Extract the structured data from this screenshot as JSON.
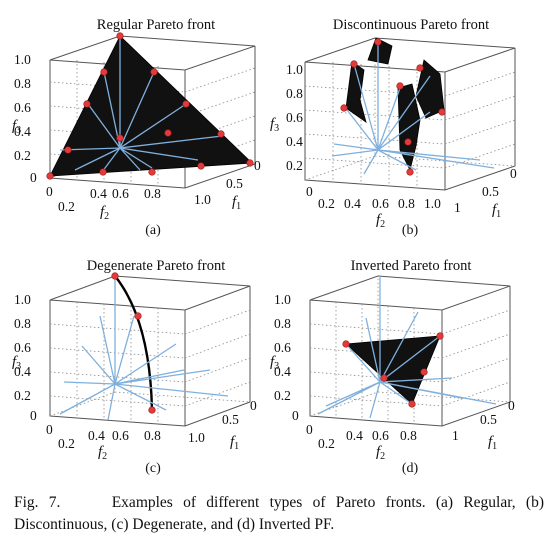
{
  "caption": {
    "label": "Fig. 7.",
    "text": "Examples of different types of Pareto fronts. (a) Regular, (b) Discontinuous, (c) Degenerate, and (d) Inverted PF."
  },
  "colors": {
    "vectors": "#7fb0dd",
    "front": "#111111",
    "points": "#e23b3b"
  },
  "panels": [
    {
      "id": "a",
      "title": "Regular Pareto front",
      "label": "(a)",
      "f3_ticks": [
        "1.0",
        "0.8",
        "0.6",
        "0.4",
        "0.2",
        "0"
      ],
      "f2_ticks": [
        "0",
        "0.2",
        "0.4",
        "0.6",
        "0.8"
      ],
      "f1_ticks": [
        "1.0",
        "0.5",
        "0"
      ],
      "axis_labels": {
        "f1": "f1",
        "f2": "f2",
        "f3": "f3"
      }
    },
    {
      "id": "b",
      "title": "Discontinuous Pareto front",
      "label": "(b)",
      "f3_ticks": [
        "1.0",
        "0.8",
        "0.6",
        "0.4",
        "0.2"
      ],
      "f2_ticks": [
        "0",
        "0.2",
        "0.4",
        "0.6",
        "0.8",
        "1.0"
      ],
      "f1_ticks": [
        "1",
        "0.5",
        "0"
      ],
      "axis_labels": {
        "f1": "f1",
        "f2": "f2",
        "f3": "f3"
      }
    },
    {
      "id": "c",
      "title": "Degenerate Pareto front",
      "label": "(c)",
      "f3_ticks": [
        "1.0",
        "0.8",
        "0.6",
        "0.4",
        "0.2",
        "0"
      ],
      "f2_ticks": [
        "0",
        "0.2",
        "0.4",
        "0.6",
        "0.8"
      ],
      "f1_ticks": [
        "1.0",
        "0.5",
        "0"
      ],
      "axis_labels": {
        "f1": "f1",
        "f2": "f2",
        "f3": "f3"
      }
    },
    {
      "id": "d",
      "title": "Inverted Pareto front",
      "label": "(d)",
      "f3_ticks": [
        "1.0",
        "0.8",
        "0.6",
        "0.4",
        "0.2",
        "0"
      ],
      "f2_ticks": [
        "0",
        "0.2",
        "0.4",
        "0.6",
        "0.8"
      ],
      "f1_ticks": [
        "1",
        "0.5",
        "0"
      ],
      "axis_labels": {
        "f1": "f1",
        "f2": "f2",
        "f3": "f3"
      }
    }
  ]
}
